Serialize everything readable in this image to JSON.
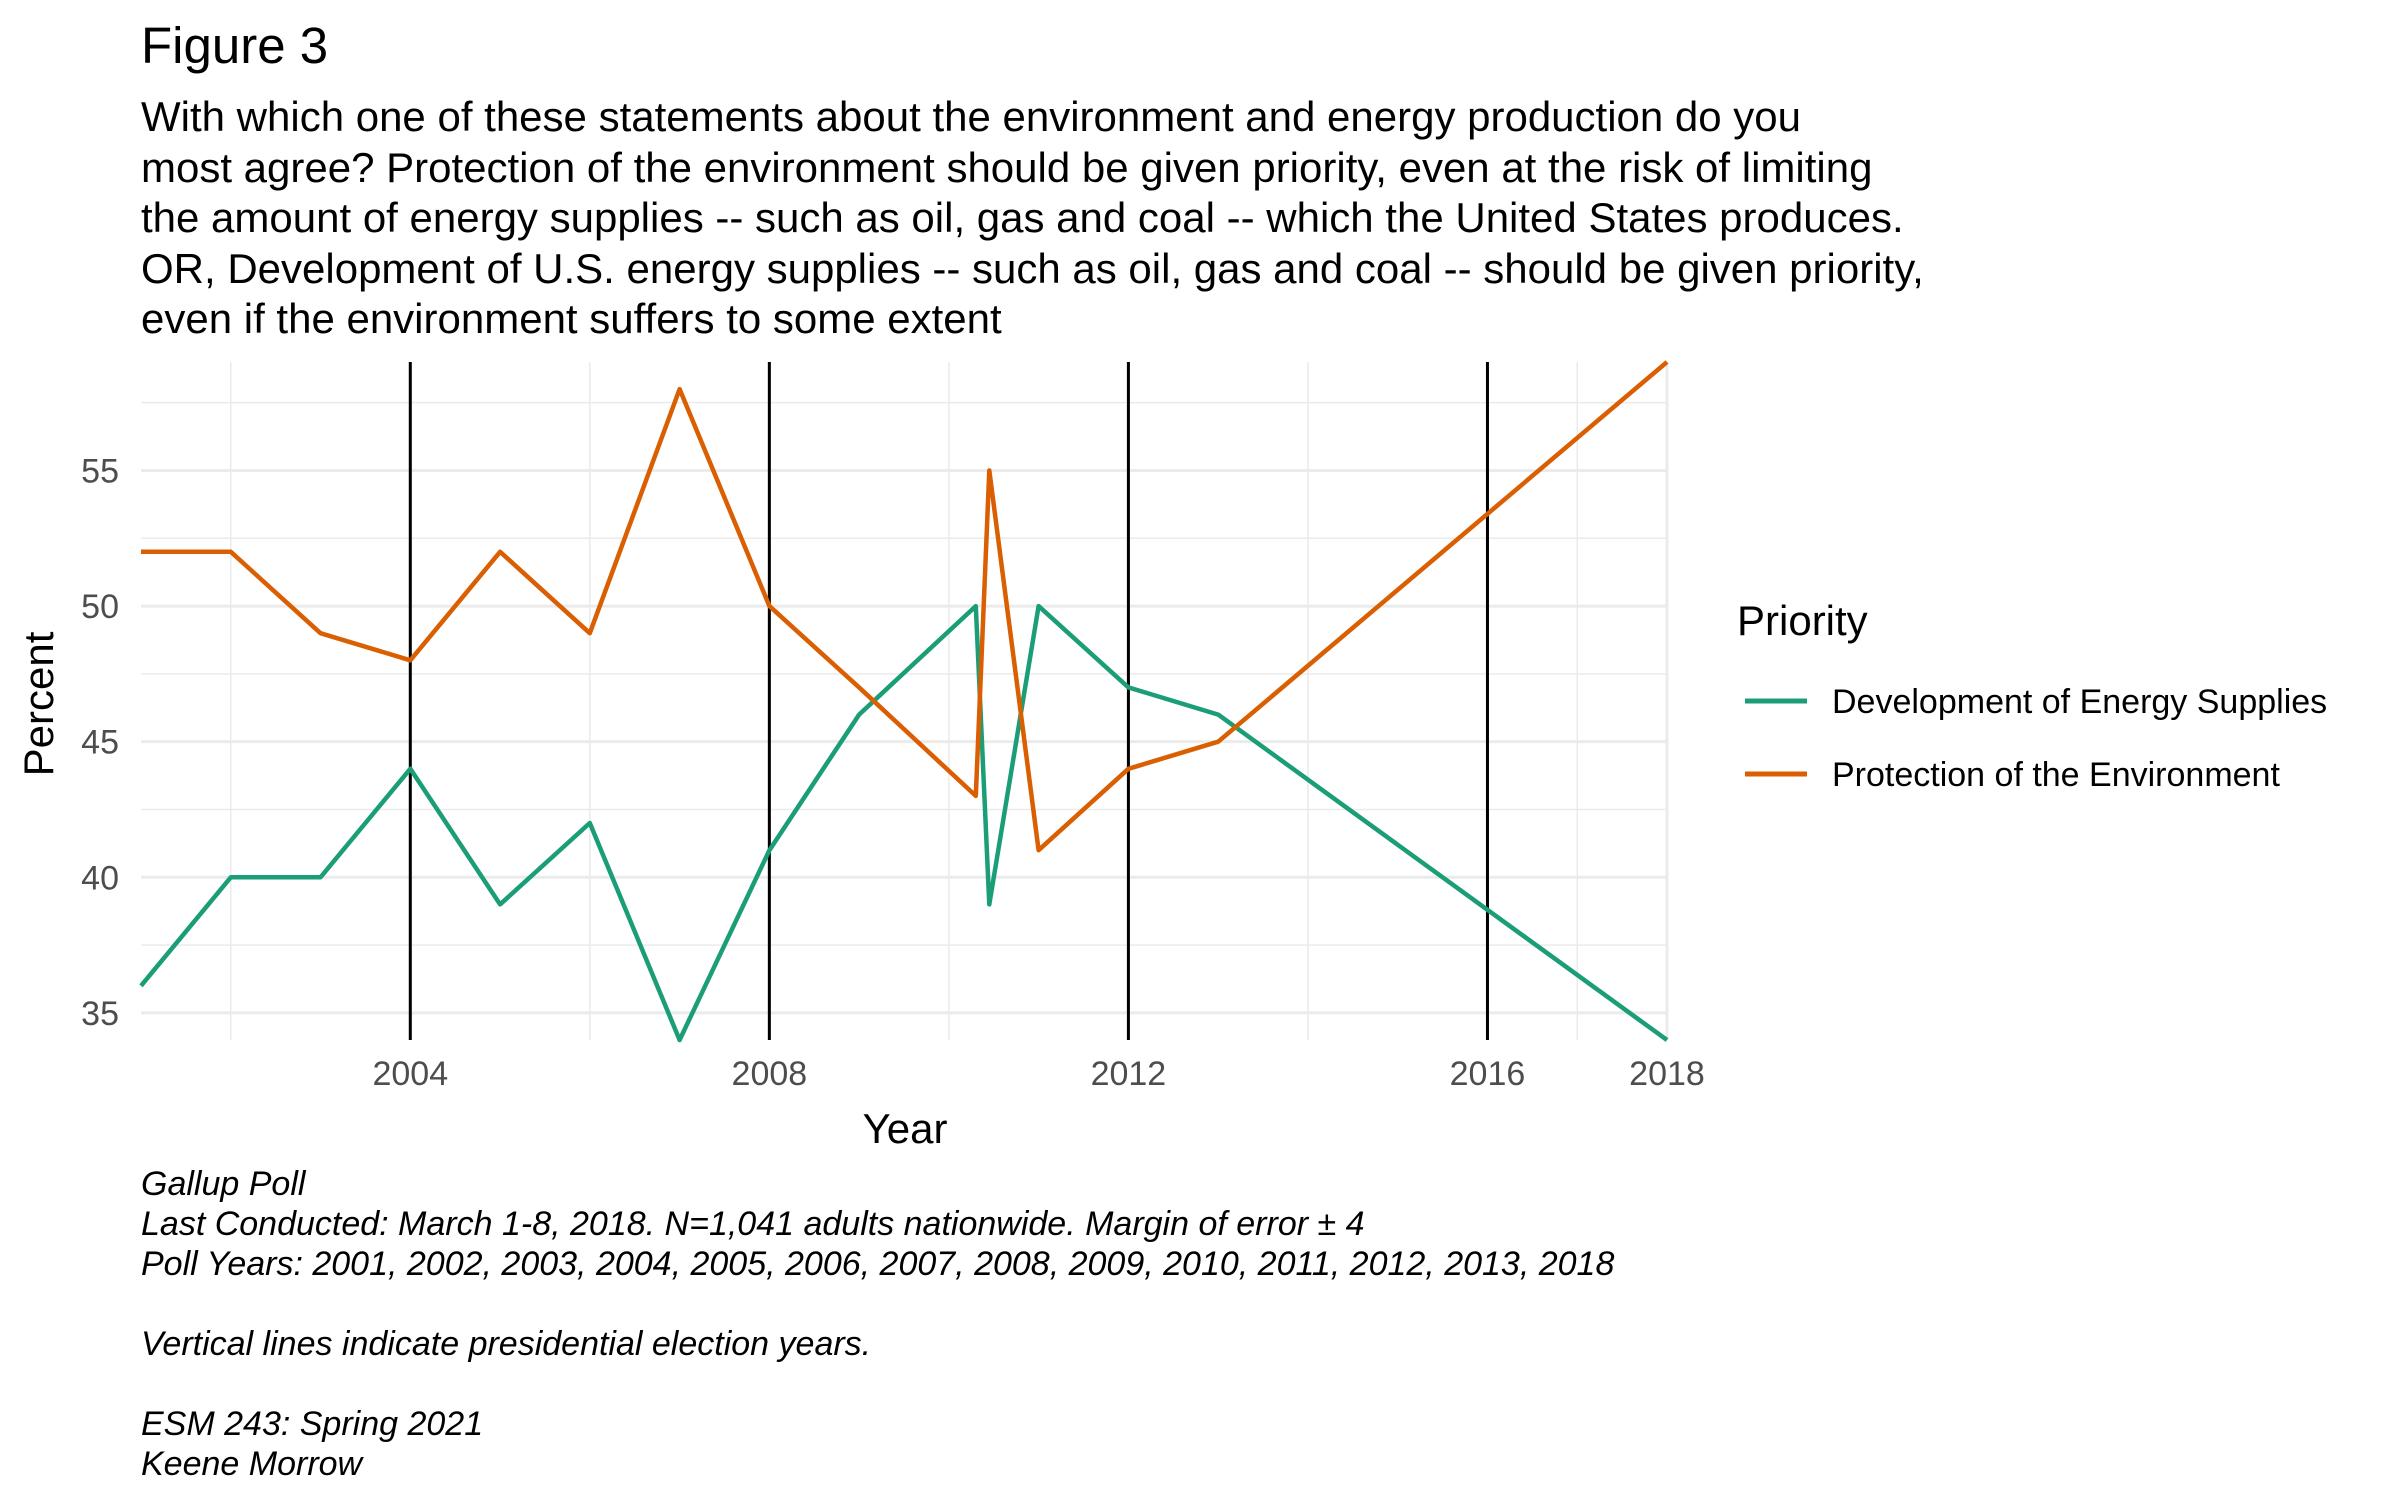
{
  "figure": {
    "title": "Figure 3",
    "subtitle": "With which one of these statements about the environment and energy production do you\nmost agree? Protection of the environment should be given priority, even at the risk of limiting\nthe amount of energy supplies -- such as oil, gas and coal -- which the United States produces.\nOR, Development of U.S. energy supplies -- such as oil, gas and coal -- should be given priority,\neven if the environment suffers to some extent"
  },
  "chart_data": {
    "type": "line",
    "xlabel": "Year",
    "ylabel": "Percent",
    "xlim": [
      2001,
      2018
    ],
    "ylim": [
      34,
      59
    ],
    "x_ticks": [
      2004,
      2008,
      2012,
      2016,
      2018
    ],
    "y_ticks": [
      35,
      40,
      45,
      50,
      55
    ],
    "x_minor": [
      2002,
      2006,
      2010,
      2014,
      2017
    ],
    "y_minor": [
      37.5,
      42.5,
      47.5,
      52.5,
      57.5
    ],
    "grid": true,
    "vlines": [
      2004,
      2008,
      2012,
      2016
    ],
    "legend": {
      "title": "Priority",
      "placement": "right"
    },
    "series": [
      {
        "name": "Development of Energy Supplies",
        "color": "#1b9e77",
        "points": [
          [
            2001,
            36
          ],
          [
            2002,
            40
          ],
          [
            2003,
            40
          ],
          [
            2004,
            44
          ],
          [
            2005,
            39
          ],
          [
            2006,
            42
          ],
          [
            2007,
            34
          ],
          [
            2008,
            41
          ],
          [
            2009,
            46
          ],
          [
            2010.3,
            50
          ],
          [
            2010.45,
            39
          ],
          [
            2011,
            50
          ],
          [
            2012,
            47
          ],
          [
            2013,
            46
          ],
          [
            2018,
            34
          ]
        ]
      },
      {
        "name": "Protection of the Environment",
        "color": "#d95f02",
        "points": [
          [
            2001,
            52
          ],
          [
            2002,
            52
          ],
          [
            2003,
            49
          ],
          [
            2004,
            48
          ],
          [
            2005,
            52
          ],
          [
            2006,
            49
          ],
          [
            2007,
            58
          ],
          [
            2008,
            50
          ],
          [
            2009,
            47
          ],
          [
            2010.3,
            43
          ],
          [
            2010.45,
            55
          ],
          [
            2011,
            41
          ],
          [
            2012,
            44
          ],
          [
            2013,
            45
          ],
          [
            2018,
            59
          ]
        ]
      }
    ]
  },
  "caption": {
    "lines": [
      "Gallup Poll",
      "Last Conducted: March 1-8, 2018. N=1,041 adults nationwide. Margin of error ± 4",
      "Poll Years: 2001, 2002, 2003, 2004, 2005, 2006, 2007, 2008, 2009, 2010, 2011, 2012, 2013, 2018",
      "",
      "Vertical lines indicate presidential election years.",
      "",
      "ESM 243: Spring 2021",
      "Keene Morrow"
    ]
  }
}
